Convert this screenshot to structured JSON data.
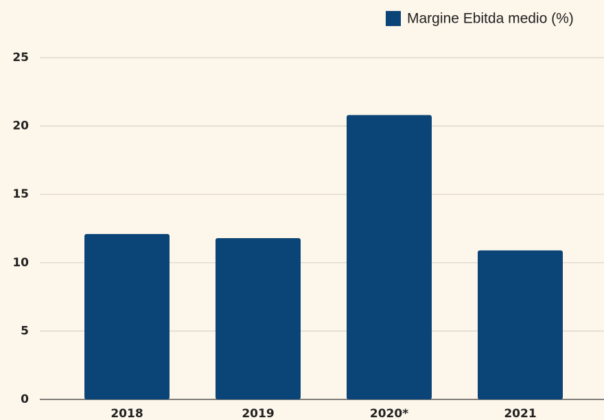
{
  "chart_data": {
    "type": "bar",
    "categories": [
      "2018",
      "2019",
      "2020*",
      "2021"
    ],
    "series": [
      {
        "name": "Margine Ebitda medio (%)",
        "color": "#0b4477",
        "values": [
          12.1,
          11.8,
          20.8,
          10.9
        ]
      }
    ],
    "ylim": [
      0,
      25
    ],
    "yticks": [
      0,
      5,
      10,
      15,
      20,
      25
    ],
    "grid": true,
    "legend": "top-right"
  }
}
